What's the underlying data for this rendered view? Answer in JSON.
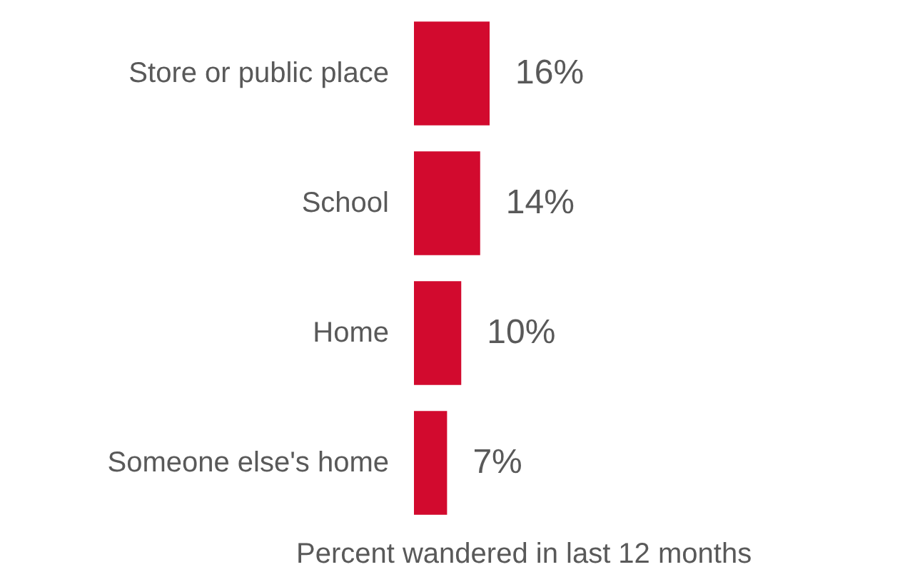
{
  "chart_data": {
    "type": "bar",
    "orientation": "horizontal",
    "categories": [
      "Store or public place",
      "School",
      "Home",
      "Someone else's home"
    ],
    "values": [
      16,
      14,
      10,
      7
    ],
    "color": "#d20a2e",
    "xlabel": "Percent wandered in last 12 months",
    "value_labels": [
      "16%",
      "14%",
      "10%",
      "7%"
    ],
    "grid": false,
    "tick_labels": "y"
  }
}
